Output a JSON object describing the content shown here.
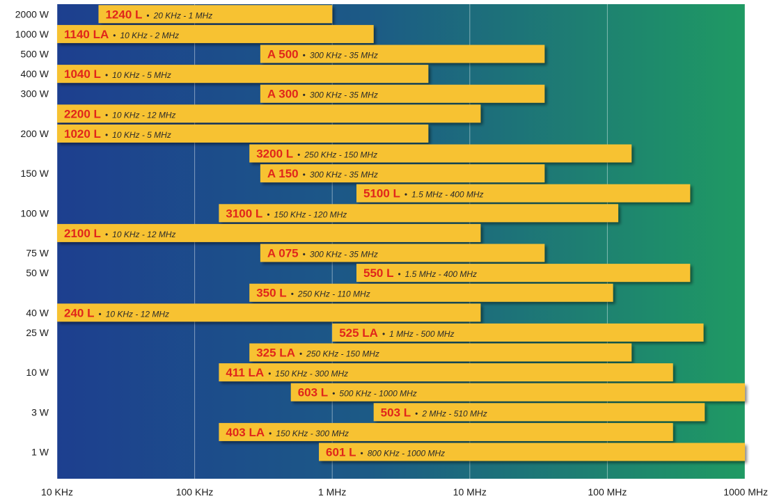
{
  "chart_data": {
    "type": "bar",
    "orientation": "horizontal",
    "x_scale": "log",
    "x_range_hz": [
      10000,
      1000000000
    ],
    "x_tick_values_hz": [
      10000,
      100000,
      1000000,
      10000000,
      100000000,
      1000000000
    ],
    "x_tick_labels": [
      "10 KHz",
      "100 KHz",
      "1 MHz",
      "10 MHz",
      "100 MHz",
      "1000 MHz"
    ],
    "y_tick_labels": [
      {
        "label": "2000 W",
        "row": 0
      },
      {
        "label": "1000 W",
        "row": 1
      },
      {
        "label": "500 W",
        "row": 2
      },
      {
        "label": "400 W",
        "row": 3
      },
      {
        "label": "300 W",
        "row": 4
      },
      {
        "label": "200 W",
        "row": 6
      },
      {
        "label": "150 W",
        "row": 8
      },
      {
        "label": "100 W",
        "row": 10
      },
      {
        "label": "75 W",
        "row": 12
      },
      {
        "label": "50 W",
        "row": 13
      },
      {
        "label": "40 W",
        "row": 15
      },
      {
        "label": "25 W",
        "row": 16
      },
      {
        "label": "10 W",
        "row": 18
      },
      {
        "label": "3 W",
        "row": 20
      },
      {
        "label": "1 W",
        "row": 22
      }
    ],
    "bars": [
      {
        "model": "1240 L",
        "range": "20 KHz - 1 MHz",
        "start_hz": 20000,
        "end_hz": 1000000
      },
      {
        "model": "1140 LA",
        "range": "10 KHz - 2 MHz",
        "start_hz": 10000,
        "end_hz": 2000000
      },
      {
        "model": "A 500",
        "range": "300 KHz - 35 MHz",
        "start_hz": 300000,
        "end_hz": 35000000
      },
      {
        "model": "1040 L",
        "range": "10 KHz - 5 MHz",
        "start_hz": 10000,
        "end_hz": 5000000
      },
      {
        "model": "A 300",
        "range": "300 KHz - 35 MHz",
        "start_hz": 300000,
        "end_hz": 35000000
      },
      {
        "model": "2200 L",
        "range": "10 KHz - 12 MHz",
        "start_hz": 10000,
        "end_hz": 12000000
      },
      {
        "model": "1020 L",
        "range": "10 KHz - 5 MHz",
        "start_hz": 10000,
        "end_hz": 5000000
      },
      {
        "model": "3200 L",
        "range": "250 KHz - 150 MHz",
        "start_hz": 250000,
        "end_hz": 150000000
      },
      {
        "model": "A 150",
        "range": "300 KHz - 35 MHz",
        "start_hz": 300000,
        "end_hz": 35000000
      },
      {
        "model": "5100 L",
        "range": "1.5 MHz - 400 MHz",
        "start_hz": 1500000,
        "end_hz": 400000000
      },
      {
        "model": "3100 L",
        "range": "150 KHz - 120 MHz",
        "start_hz": 150000,
        "end_hz": 120000000
      },
      {
        "model": "2100 L",
        "range": "10 KHz - 12 MHz",
        "start_hz": 10000,
        "end_hz": 12000000
      },
      {
        "model": "A 075",
        "range": "300 KHz - 35 MHz",
        "start_hz": 300000,
        "end_hz": 35000000
      },
      {
        "model": "550 L",
        "range": "1.5 MHz - 400 MHz",
        "start_hz": 1500000,
        "end_hz": 400000000
      },
      {
        "model": "350 L",
        "range": "250 KHz - 110 MHz",
        "start_hz": 250000,
        "end_hz": 110000000
      },
      {
        "model": "240 L",
        "range": "10 KHz - 12 MHz",
        "start_hz": 10000,
        "end_hz": 12000000
      },
      {
        "model": "525 LA",
        "range": "1 MHz - 500 MHz",
        "start_hz": 1000000,
        "end_hz": 500000000
      },
      {
        "model": "325 LA",
        "range": "250 KHz - 150 MHz",
        "start_hz": 250000,
        "end_hz": 150000000
      },
      {
        "model": "411 LA",
        "range": "150 KHz - 300 MHz",
        "start_hz": 150000,
        "end_hz": 300000000
      },
      {
        "model": "603 L",
        "range": "500 KHz - 1000 MHz",
        "start_hz": 500000,
        "end_hz": 1000000000
      },
      {
        "model": "503 L",
        "range": "2 MHz - 510 MHz",
        "start_hz": 2000000,
        "end_hz": 510000000
      },
      {
        "model": "403 LA",
        "range": "150 KHz - 300 MHz",
        "start_hz": 150000,
        "end_hz": 300000000
      },
      {
        "model": "601 L",
        "range": "800 KHz - 1000 MHz",
        "start_hz": 800000,
        "end_hz": 1000000000
      }
    ],
    "colors": {
      "background_left": "#1d3f8f",
      "background_right": "#1f9a63",
      "bar": "#f7c233",
      "model_text": "#e0261b",
      "range_text": "#2a2a2a",
      "gridline": "#ffffff"
    }
  }
}
